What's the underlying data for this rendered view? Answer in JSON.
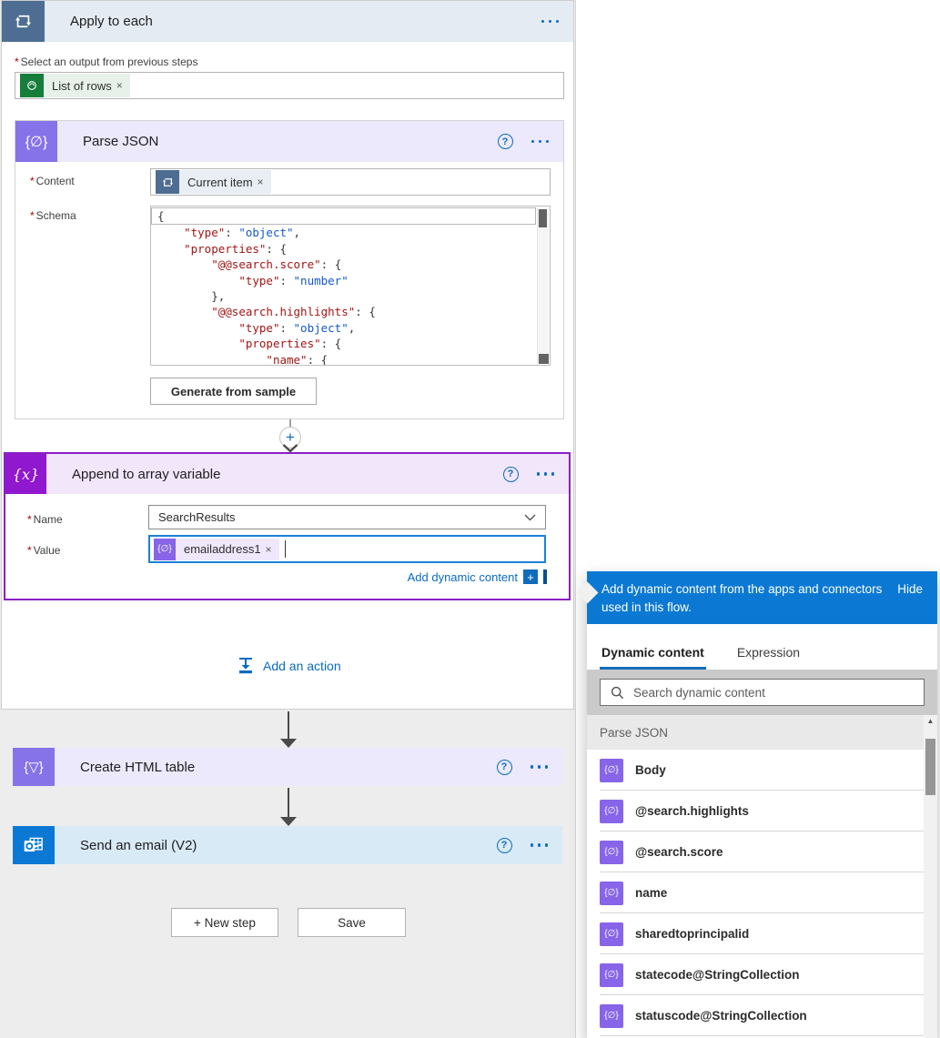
{
  "required_mark": "*",
  "icons": {
    "braces_glyph": "{∅}",
    "append_glyph": "{x}",
    "table_glyph": "{▽}",
    "help_glyph": "?",
    "plus_glyph": "+",
    "remove_glyph": "×",
    "scroll_up_glyph": "▲"
  },
  "colors": {
    "accent_blue": "#0b79d4",
    "link_blue": "#0b6bc2",
    "selected_purple": "#8b1fc4",
    "token_purple": "#8764e8",
    "dataverse_green": "#177d3b",
    "loop_slate": "#4e6d92"
  },
  "apply_to_each": {
    "title": "Apply to each",
    "output_label": "Select an output from previous steps",
    "output_token": "List of rows",
    "add_action_label": "Add an action"
  },
  "parse_json": {
    "title": "Parse JSON",
    "content_label": "Content",
    "content_token": "Current item",
    "schema_label": "Schema",
    "generate_button": "Generate from sample",
    "schema_lines": [
      [
        [
          "p",
          "{"
        ]
      ],
      [
        [
          "p",
          "    "
        ],
        [
          "k",
          "\"type\""
        ],
        [
          "p",
          ": "
        ],
        [
          "v",
          "\"object\""
        ],
        [
          "p",
          ","
        ]
      ],
      [
        [
          "p",
          "    "
        ],
        [
          "k",
          "\"properties\""
        ],
        [
          "p",
          ": {"
        ]
      ],
      [
        [
          "p",
          "        "
        ],
        [
          "k",
          "\"@@search.score\""
        ],
        [
          "p",
          ": {"
        ]
      ],
      [
        [
          "p",
          "            "
        ],
        [
          "k",
          "\"type\""
        ],
        [
          "p",
          ": "
        ],
        [
          "v",
          "\"number\""
        ]
      ],
      [
        [
          "p",
          "        },"
        ]
      ],
      [
        [
          "p",
          "        "
        ],
        [
          "k",
          "\"@@search.highlights\""
        ],
        [
          "p",
          ": {"
        ]
      ],
      [
        [
          "p",
          "            "
        ],
        [
          "k",
          "\"type\""
        ],
        [
          "p",
          ": "
        ],
        [
          "v",
          "\"object\""
        ],
        [
          "p",
          ","
        ]
      ],
      [
        [
          "p",
          "            "
        ],
        [
          "k",
          "\"properties\""
        ],
        [
          "p",
          ": {"
        ]
      ],
      [
        [
          "p",
          "                "
        ],
        [
          "k",
          "\"name\""
        ],
        [
          "p",
          ": {"
        ]
      ]
    ]
  },
  "append": {
    "title": "Append to array variable",
    "name_label": "Name",
    "name_value": "SearchResults",
    "value_label": "Value",
    "value_token": "emailaddress1",
    "add_dynamic_content": "Add dynamic content"
  },
  "create_table": {
    "title": "Create HTML table"
  },
  "send_email": {
    "title": "Send an email (V2)"
  },
  "footer": {
    "new_step": "+ New step",
    "save": "Save"
  },
  "panel": {
    "header": "Add dynamic content from the apps and connectors used in this flow.",
    "hide": "Hide",
    "tabs": [
      {
        "label": "Dynamic content"
      },
      {
        "label": "Expression"
      }
    ],
    "search_placeholder": "Search dynamic content",
    "group": "Parse JSON",
    "items": [
      {
        "label": "Body"
      },
      {
        "label": "@search.highlights"
      },
      {
        "label": "@search.score"
      },
      {
        "label": "name"
      },
      {
        "label": "sharedtoprincipalid"
      },
      {
        "label": "statecode@StringCollection"
      },
      {
        "label": "statuscode@StringCollection"
      }
    ]
  }
}
